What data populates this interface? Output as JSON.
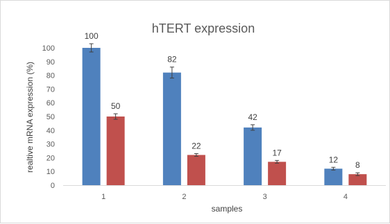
{
  "chart_data": {
    "type": "bar",
    "title": "hTERT expression",
    "xlabel": "samples",
    "ylabel": "realtive mRNA expression (%)",
    "categories": [
      "1",
      "2",
      "3",
      "4"
    ],
    "series": [
      {
        "values": [
          100,
          82,
          42,
          12
        ],
        "errors": [
          3,
          4,
          2,
          1
        ],
        "color": "#4f81bd"
      },
      {
        "values": [
          50,
          22,
          17,
          8
        ],
        "errors": [
          2,
          1,
          1,
          1
        ],
        "color": "#c0504d"
      }
    ],
    "ylim": [
      0,
      100
    ],
    "yticks": [
      0,
      10,
      20,
      30,
      40,
      50,
      60,
      70,
      80,
      90,
      100
    ],
    "grid": false,
    "legend": "none"
  }
}
